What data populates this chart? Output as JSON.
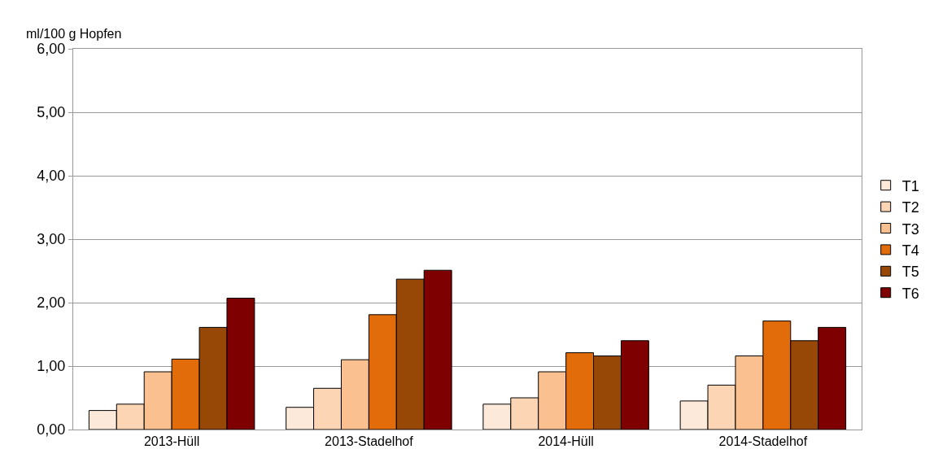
{
  "chart_data": {
    "type": "bar",
    "ylabel": "ml/100 g Hopfen",
    "categories": [
      "2013-Hüll",
      "2013-Stadelhof",
      "2014-Hüll",
      "2014-Stadelhof"
    ],
    "series": [
      {
        "name": "T1",
        "color": "#fde9d9",
        "values": [
          0.3,
          0.35,
          0.4,
          0.45
        ]
      },
      {
        "name": "T2",
        "color": "#fcd5b5",
        "values": [
          0.4,
          0.65,
          0.5,
          0.7
        ]
      },
      {
        "name": "T3",
        "color": "#fac090",
        "values": [
          0.91,
          1.1,
          0.91,
          1.16
        ]
      },
      {
        "name": "T4",
        "color": "#e36c0a",
        "values": [
          1.11,
          1.81,
          1.21,
          1.71
        ]
      },
      {
        "name": "T5",
        "color": "#974806",
        "values": [
          1.61,
          2.37,
          1.16,
          1.4
        ]
      },
      {
        "name": "T6",
        "color": "#7f0000",
        "values": [
          2.07,
          2.51,
          1.4,
          1.61
        ]
      }
    ],
    "ylim": [
      0,
      6
    ],
    "yticks": [
      {
        "value": 0,
        "label": "0,00"
      },
      {
        "value": 1,
        "label": "1,00"
      },
      {
        "value": 2,
        "label": "2,00"
      },
      {
        "value": 3,
        "label": "3,00"
      },
      {
        "value": 4,
        "label": "4,00"
      },
      {
        "value": 5,
        "label": "5,00"
      },
      {
        "value": 6,
        "label": "6,00"
      }
    ],
    "grid": "y",
    "legend": "right"
  }
}
